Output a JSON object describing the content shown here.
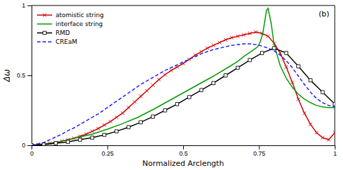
{
  "chart_data": {
    "type": "line",
    "title": "(b)",
    "xlabel": "Normalized Arclength",
    "ylabel": "Δω",
    "xlim": [
      0,
      1
    ],
    "ylim": [
      0,
      1
    ],
    "xticks": [
      0,
      0.25,
      0.5,
      0.75,
      1
    ],
    "yticks": [
      0,
      0.5,
      1
    ],
    "grid": false,
    "legend": "upper left",
    "series": [
      {
        "name": "atomistic string",
        "color": "#cc0000",
        "marker": "x",
        "line_style": "solid",
        "x": [
          0.0,
          0.02,
          0.04,
          0.06,
          0.08,
          0.1,
          0.12,
          0.14,
          0.16,
          0.18,
          0.2,
          0.22,
          0.24,
          0.26,
          0.28,
          0.3,
          0.32,
          0.34,
          0.36,
          0.38,
          0.4,
          0.42,
          0.44,
          0.46,
          0.48,
          0.5,
          0.52,
          0.54,
          0.56,
          0.58,
          0.6,
          0.62,
          0.64,
          0.66,
          0.68,
          0.7,
          0.72,
          0.74,
          0.76,
          0.78,
          0.8,
          0.82,
          0.84,
          0.86,
          0.88,
          0.9,
          0.92,
          0.94,
          0.96,
          0.98,
          1.0
        ],
        "values": [
          0.0,
          0.005,
          0.01,
          0.015,
          0.02,
          0.03,
          0.04,
          0.05,
          0.065,
          0.08,
          0.1,
          0.12,
          0.145,
          0.17,
          0.2,
          0.23,
          0.27,
          0.31,
          0.35,
          0.39,
          0.43,
          0.47,
          0.505,
          0.535,
          0.56,
          0.585,
          0.615,
          0.645,
          0.67,
          0.695,
          0.715,
          0.735,
          0.755,
          0.77,
          0.78,
          0.79,
          0.8,
          0.81,
          0.8,
          0.78,
          0.73,
          0.66,
          0.56,
          0.45,
          0.33,
          0.23,
          0.15,
          0.09,
          0.055,
          0.04,
          0.09
        ]
      },
      {
        "name": "interface string",
        "color": "#009900",
        "line_style": "solid",
        "x": [
          0.0,
          0.05,
          0.1,
          0.15,
          0.2,
          0.25,
          0.3,
          0.35,
          0.4,
          0.45,
          0.5,
          0.55,
          0.6,
          0.65,
          0.68,
          0.7,
          0.72,
          0.73,
          0.74,
          0.745,
          0.75,
          0.755,
          0.76,
          0.765,
          0.77,
          0.775,
          0.78,
          0.79,
          0.8,
          0.82,
          0.84,
          0.86,
          0.88,
          0.9,
          0.92,
          0.94,
          0.96,
          0.98,
          1.0
        ],
        "values": [
          0.0,
          0.01,
          0.03,
          0.055,
          0.08,
          0.115,
          0.155,
          0.2,
          0.255,
          0.315,
          0.375,
          0.435,
          0.495,
          0.56,
          0.6,
          0.635,
          0.665,
          0.68,
          0.695,
          0.705,
          0.72,
          0.745,
          0.78,
          0.83,
          0.9,
          0.965,
          0.98,
          0.875,
          0.72,
          0.57,
          0.48,
          0.415,
          0.365,
          0.33,
          0.305,
          0.285,
          0.275,
          0.27,
          0.27
        ]
      },
      {
        "name": "RMD",
        "color": "#000000",
        "marker": "square",
        "line_style": "solid",
        "x": [
          0.0,
          0.04,
          0.08,
          0.12,
          0.16,
          0.2,
          0.24,
          0.28,
          0.32,
          0.36,
          0.4,
          0.44,
          0.48,
          0.52,
          0.56,
          0.6,
          0.64,
          0.68,
          0.72,
          0.76,
          0.8,
          0.84,
          0.88,
          0.92,
          0.96,
          1.0
        ],
        "values": [
          0.0,
          0.005,
          0.015,
          0.025,
          0.04,
          0.055,
          0.075,
          0.1,
          0.13,
          0.165,
          0.205,
          0.25,
          0.295,
          0.345,
          0.395,
          0.445,
          0.5,
          0.555,
          0.61,
          0.66,
          0.695,
          0.66,
          0.565,
          0.465,
          0.38,
          0.295
        ]
      },
      {
        "name": "CREaM",
        "color": "#1a1aff",
        "line_style": "dashed",
        "x": [
          0.0,
          0.02,
          0.04,
          0.06,
          0.08,
          0.1,
          0.12,
          0.14,
          0.16,
          0.18,
          0.2,
          0.22,
          0.24,
          0.26,
          0.28,
          0.3,
          0.32,
          0.34,
          0.36,
          0.38,
          0.4,
          0.42,
          0.44,
          0.46,
          0.48,
          0.5,
          0.52,
          0.54,
          0.56,
          0.58,
          0.6,
          0.62,
          0.64,
          0.66,
          0.68,
          0.7,
          0.72,
          0.74,
          0.76,
          0.78,
          0.8,
          0.82,
          0.84,
          0.86,
          0.88,
          0.9,
          0.92,
          0.94,
          0.96,
          0.98,
          1.0
        ],
        "values": [
          0.0,
          0.01,
          0.02,
          0.04,
          0.06,
          0.08,
          0.105,
          0.125,
          0.15,
          0.175,
          0.2,
          0.225,
          0.255,
          0.285,
          0.315,
          0.345,
          0.375,
          0.405,
          0.435,
          0.46,
          0.485,
          0.51,
          0.535,
          0.555,
          0.575,
          0.595,
          0.615,
          0.635,
          0.655,
          0.67,
          0.685,
          0.695,
          0.705,
          0.715,
          0.72,
          0.725,
          0.725,
          0.72,
          0.71,
          0.695,
          0.675,
          0.645,
          0.605,
          0.555,
          0.495,
          0.435,
          0.38,
          0.335,
          0.305,
          0.285,
          0.275
        ]
      }
    ]
  }
}
